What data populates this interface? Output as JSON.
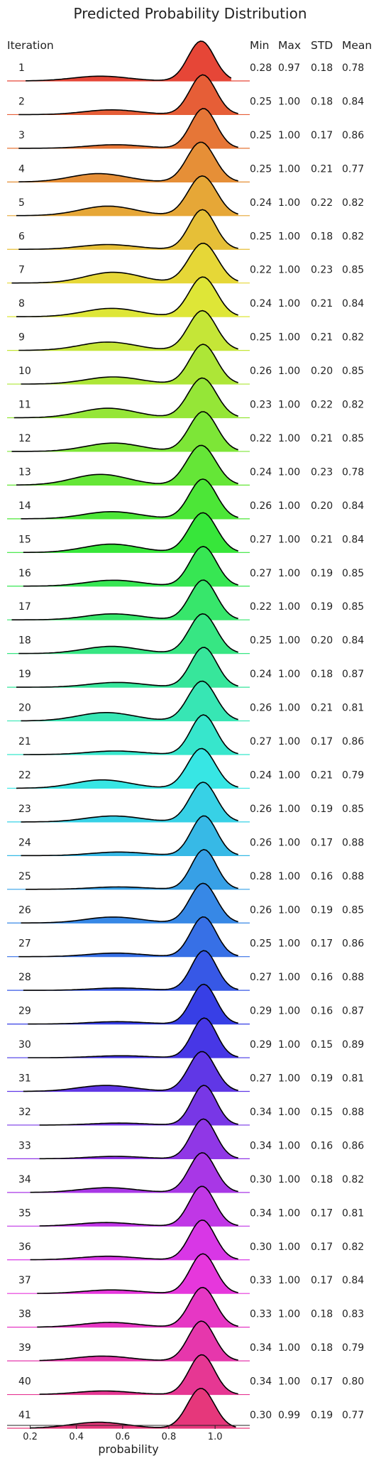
{
  "chart_data": {
    "type": "ridgeline",
    "title": "Predicted Probability Distribution",
    "xlabel": "probability",
    "xticks": [
      0.2,
      0.4,
      0.6,
      0.8,
      1.0
    ],
    "xlim": [
      0.1,
      1.15
    ],
    "grid": false,
    "headers": {
      "iteration": "Iteration",
      "min": "Min",
      "max": "Max",
      "std": "STD",
      "mean": "Mean"
    },
    "rows": [
      {
        "iteration": "1",
        "min": "0.28",
        "max": "0.97",
        "std": "0.18",
        "mean": "0.78"
      },
      {
        "iteration": "2",
        "min": "0.25",
        "max": "1.00",
        "std": "0.18",
        "mean": "0.84"
      },
      {
        "iteration": "3",
        "min": "0.25",
        "max": "1.00",
        "std": "0.17",
        "mean": "0.86"
      },
      {
        "iteration": "4",
        "min": "0.25",
        "max": "1.00",
        "std": "0.21",
        "mean": "0.77"
      },
      {
        "iteration": "5",
        "min": "0.24",
        "max": "1.00",
        "std": "0.22",
        "mean": "0.82"
      },
      {
        "iteration": "6",
        "min": "0.25",
        "max": "1.00",
        "std": "0.18",
        "mean": "0.82"
      },
      {
        "iteration": "7",
        "min": "0.22",
        "max": "1.00",
        "std": "0.23",
        "mean": "0.85"
      },
      {
        "iteration": "8",
        "min": "0.24",
        "max": "1.00",
        "std": "0.21",
        "mean": "0.84"
      },
      {
        "iteration": "9",
        "min": "0.25",
        "max": "1.00",
        "std": "0.21",
        "mean": "0.82"
      },
      {
        "iteration": "10",
        "min": "0.26",
        "max": "1.00",
        "std": "0.20",
        "mean": "0.85"
      },
      {
        "iteration": "11",
        "min": "0.23",
        "max": "1.00",
        "std": "0.22",
        "mean": "0.82"
      },
      {
        "iteration": "12",
        "min": "0.22",
        "max": "1.00",
        "std": "0.21",
        "mean": "0.85"
      },
      {
        "iteration": "13",
        "min": "0.24",
        "max": "1.00",
        "std": "0.23",
        "mean": "0.78"
      },
      {
        "iteration": "14",
        "min": "0.26",
        "max": "1.00",
        "std": "0.20",
        "mean": "0.84"
      },
      {
        "iteration": "15",
        "min": "0.27",
        "max": "1.00",
        "std": "0.21",
        "mean": "0.84"
      },
      {
        "iteration": "16",
        "min": "0.27",
        "max": "1.00",
        "std": "0.19",
        "mean": "0.85"
      },
      {
        "iteration": "17",
        "min": "0.22",
        "max": "1.00",
        "std": "0.19",
        "mean": "0.85"
      },
      {
        "iteration": "18",
        "min": "0.25",
        "max": "1.00",
        "std": "0.20",
        "mean": "0.84"
      },
      {
        "iteration": "19",
        "min": "0.24",
        "max": "1.00",
        "std": "0.18",
        "mean": "0.87"
      },
      {
        "iteration": "20",
        "min": "0.26",
        "max": "1.00",
        "std": "0.21",
        "mean": "0.81"
      },
      {
        "iteration": "21",
        "min": "0.27",
        "max": "1.00",
        "std": "0.17",
        "mean": "0.86"
      },
      {
        "iteration": "22",
        "min": "0.24",
        "max": "1.00",
        "std": "0.21",
        "mean": "0.79"
      },
      {
        "iteration": "23",
        "min": "0.26",
        "max": "1.00",
        "std": "0.19",
        "mean": "0.85"
      },
      {
        "iteration": "24",
        "min": "0.26",
        "max": "1.00",
        "std": "0.17",
        "mean": "0.88"
      },
      {
        "iteration": "25",
        "min": "0.28",
        "max": "1.00",
        "std": "0.16",
        "mean": "0.88"
      },
      {
        "iteration": "26",
        "min": "0.26",
        "max": "1.00",
        "std": "0.19",
        "mean": "0.85"
      },
      {
        "iteration": "27",
        "min": "0.25",
        "max": "1.00",
        "std": "0.17",
        "mean": "0.86"
      },
      {
        "iteration": "28",
        "min": "0.27",
        "max": "1.00",
        "std": "0.16",
        "mean": "0.88"
      },
      {
        "iteration": "29",
        "min": "0.29",
        "max": "1.00",
        "std": "0.16",
        "mean": "0.87"
      },
      {
        "iteration": "30",
        "min": "0.29",
        "max": "1.00",
        "std": "0.15",
        "mean": "0.89"
      },
      {
        "iteration": "31",
        "min": "0.27",
        "max": "1.00",
        "std": "0.19",
        "mean": "0.81"
      },
      {
        "iteration": "32",
        "min": "0.34",
        "max": "1.00",
        "std": "0.15",
        "mean": "0.88"
      },
      {
        "iteration": "33",
        "min": "0.34",
        "max": "1.00",
        "std": "0.16",
        "mean": "0.86"
      },
      {
        "iteration": "34",
        "min": "0.30",
        "max": "1.00",
        "std": "0.18",
        "mean": "0.82"
      },
      {
        "iteration": "35",
        "min": "0.34",
        "max": "1.00",
        "std": "0.17",
        "mean": "0.81"
      },
      {
        "iteration": "36",
        "min": "0.30",
        "max": "1.00",
        "std": "0.17",
        "mean": "0.82"
      },
      {
        "iteration": "37",
        "min": "0.33",
        "max": "1.00",
        "std": "0.17",
        "mean": "0.84"
      },
      {
        "iteration": "38",
        "min": "0.33",
        "max": "1.00",
        "std": "0.18",
        "mean": "0.83"
      },
      {
        "iteration": "39",
        "min": "0.34",
        "max": "1.00",
        "std": "0.18",
        "mean": "0.79"
      },
      {
        "iteration": "40",
        "min": "0.34",
        "max": "1.00",
        "std": "0.17",
        "mean": "0.80"
      },
      {
        "iteration": "41",
        "min": "0.30",
        "max": "0.99",
        "std": "0.19",
        "mean": "0.77"
      }
    ]
  }
}
